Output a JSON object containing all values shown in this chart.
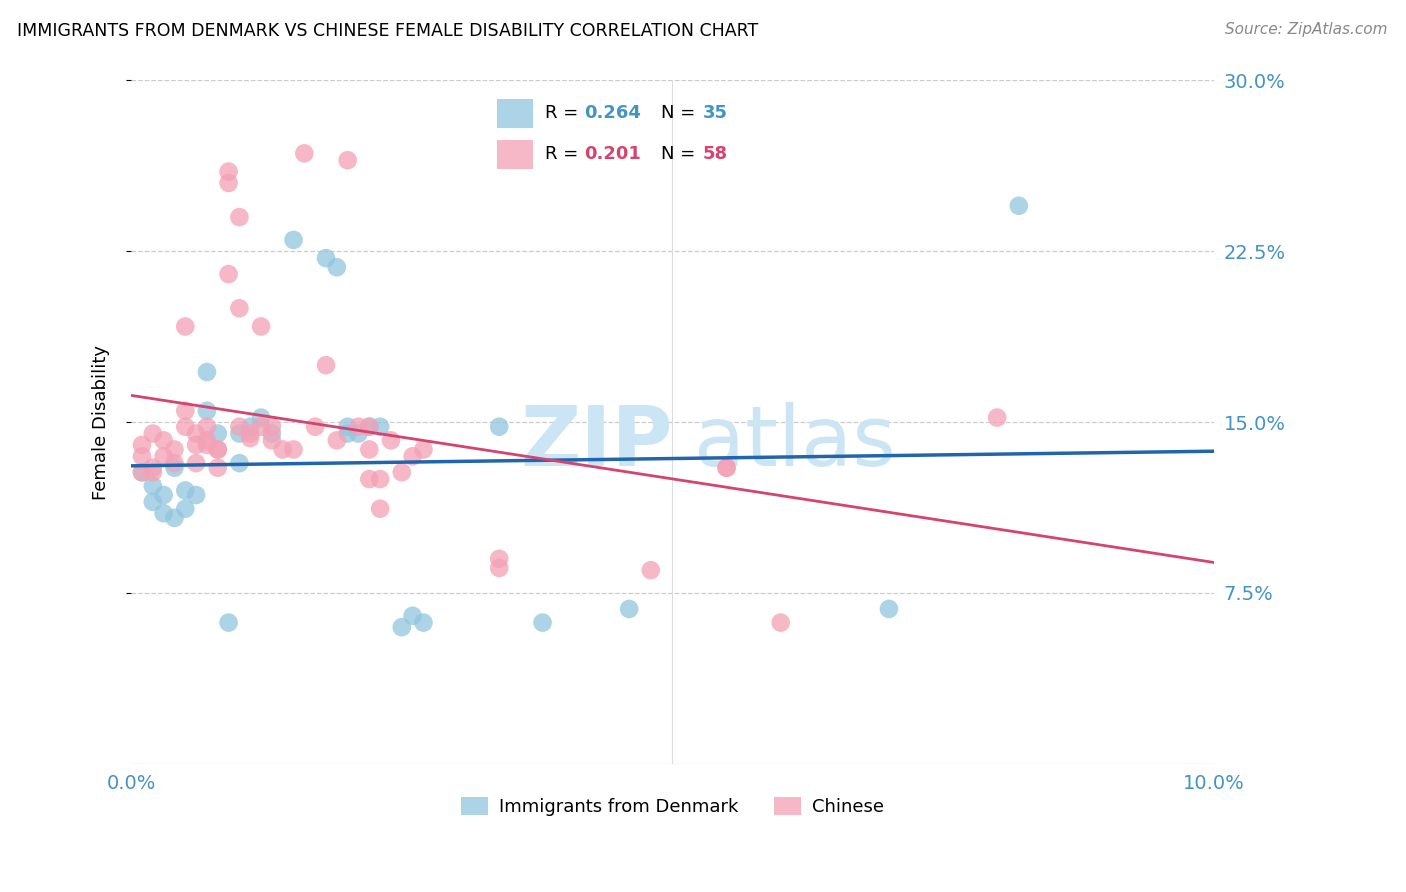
{
  "title": "IMMIGRANTS FROM DENMARK VS CHINESE FEMALE DISABILITY CORRELATION CHART",
  "source": "Source: ZipAtlas.com",
  "ylabel": "Female Disability",
  "xlim": [
    0.0,
    0.1
  ],
  "ylim": [
    0.0,
    0.3
  ],
  "yticks": [
    0.075,
    0.15,
    0.225,
    0.3
  ],
  "ytick_labels": [
    "7.5%",
    "15.0%",
    "22.5%",
    "30.0%"
  ],
  "xticks": [
    0.0,
    0.02,
    0.04,
    0.06,
    0.08,
    0.1
  ],
  "legend_label1": "Immigrants from Denmark",
  "legend_label2": "Chinese",
  "r1": 0.264,
  "n1": 35,
  "r2": 0.201,
  "n2": 58,
  "color_blue": "#92c5de",
  "color_pink": "#f4a0b5",
  "color_blue_line": "#2166ac",
  "color_pink_line": "#d6436e",
  "color_axis_text": "#4393c3",
  "color_pink_text": "#d6436e",
  "watermark_color": "#cce5f5",
  "scatter_blue": [
    [
      0.001,
      0.128
    ],
    [
      0.002,
      0.122
    ],
    [
      0.002,
      0.115
    ],
    [
      0.003,
      0.11
    ],
    [
      0.003,
      0.118
    ],
    [
      0.004,
      0.13
    ],
    [
      0.004,
      0.108
    ],
    [
      0.005,
      0.12
    ],
    [
      0.005,
      0.112
    ],
    [
      0.006,
      0.118
    ],
    [
      0.007,
      0.172
    ],
    [
      0.007,
      0.155
    ],
    [
      0.008,
      0.145
    ],
    [
      0.009,
      0.062
    ],
    [
      0.01,
      0.132
    ],
    [
      0.01,
      0.145
    ],
    [
      0.011,
      0.148
    ],
    [
      0.012,
      0.152
    ],
    [
      0.013,
      0.145
    ],
    [
      0.015,
      0.23
    ],
    [
      0.018,
      0.222
    ],
    [
      0.019,
      0.218
    ],
    [
      0.02,
      0.145
    ],
    [
      0.02,
      0.148
    ],
    [
      0.021,
      0.145
    ],
    [
      0.022,
      0.148
    ],
    [
      0.023,
      0.148
    ],
    [
      0.025,
      0.06
    ],
    [
      0.026,
      0.065
    ],
    [
      0.027,
      0.062
    ],
    [
      0.034,
      0.148
    ],
    [
      0.038,
      0.062
    ],
    [
      0.046,
      0.068
    ],
    [
      0.07,
      0.068
    ],
    [
      0.082,
      0.245
    ]
  ],
  "scatter_pink": [
    [
      0.001,
      0.128
    ],
    [
      0.001,
      0.135
    ],
    [
      0.001,
      0.14
    ],
    [
      0.002,
      0.145
    ],
    [
      0.002,
      0.13
    ],
    [
      0.002,
      0.128
    ],
    [
      0.003,
      0.135
    ],
    [
      0.003,
      0.142
    ],
    [
      0.004,
      0.138
    ],
    [
      0.004,
      0.132
    ],
    [
      0.005,
      0.148
    ],
    [
      0.005,
      0.192
    ],
    [
      0.005,
      0.155
    ],
    [
      0.006,
      0.14
    ],
    [
      0.006,
      0.145
    ],
    [
      0.006,
      0.132
    ],
    [
      0.007,
      0.148
    ],
    [
      0.007,
      0.142
    ],
    [
      0.007,
      0.14
    ],
    [
      0.008,
      0.138
    ],
    [
      0.008,
      0.138
    ],
    [
      0.008,
      0.13
    ],
    [
      0.009,
      0.215
    ],
    [
      0.009,
      0.255
    ],
    [
      0.009,
      0.26
    ],
    [
      0.01,
      0.24
    ],
    [
      0.01,
      0.2
    ],
    [
      0.01,
      0.148
    ],
    [
      0.011,
      0.145
    ],
    [
      0.011,
      0.143
    ],
    [
      0.012,
      0.148
    ],
    [
      0.012,
      0.192
    ],
    [
      0.013,
      0.148
    ],
    [
      0.013,
      0.142
    ],
    [
      0.014,
      0.138
    ],
    [
      0.015,
      0.138
    ],
    [
      0.016,
      0.268
    ],
    [
      0.017,
      0.148
    ],
    [
      0.018,
      0.175
    ],
    [
      0.019,
      0.142
    ],
    [
      0.02,
      0.265
    ],
    [
      0.021,
      0.148
    ],
    [
      0.022,
      0.148
    ],
    [
      0.022,
      0.138
    ],
    [
      0.022,
      0.125
    ],
    [
      0.023,
      0.125
    ],
    [
      0.023,
      0.112
    ],
    [
      0.024,
      0.142
    ],
    [
      0.025,
      0.128
    ],
    [
      0.026,
      0.135
    ],
    [
      0.027,
      0.138
    ],
    [
      0.034,
      0.09
    ],
    [
      0.034,
      0.086
    ],
    [
      0.048,
      0.085
    ],
    [
      0.055,
      0.13
    ],
    [
      0.055,
      0.13
    ],
    [
      0.06,
      0.062
    ],
    [
      0.08,
      0.152
    ]
  ]
}
